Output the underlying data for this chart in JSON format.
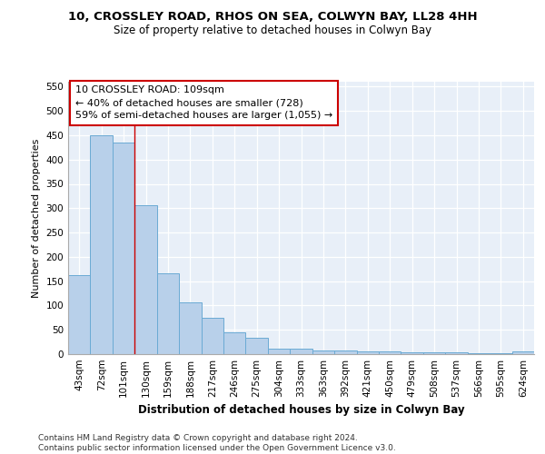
{
  "title1": "10, CROSSLEY ROAD, RHOS ON SEA, COLWYN BAY, LL28 4HH",
  "title2": "Size of property relative to detached houses in Colwyn Bay",
  "xlabel": "Distribution of detached houses by size in Colwyn Bay",
  "ylabel": "Number of detached properties",
  "categories": [
    "43sqm",
    "72sqm",
    "101sqm",
    "130sqm",
    "159sqm",
    "188sqm",
    "217sqm",
    "246sqm",
    "275sqm",
    "304sqm",
    "333sqm",
    "363sqm",
    "392sqm",
    "421sqm",
    "450sqm",
    "479sqm",
    "508sqm",
    "537sqm",
    "566sqm",
    "595sqm",
    "624sqm"
  ],
  "values": [
    163,
    450,
    435,
    307,
    167,
    106,
    74,
    44,
    33,
    11,
    11,
    8,
    8,
    5,
    5,
    3,
    3,
    3,
    1,
    1,
    5
  ],
  "bar_color": "#b8d0ea",
  "bar_edge_color": "#6aaad4",
  "vline_x": 2.5,
  "vline_color": "#cc0000",
  "annotation_text": "10 CROSSLEY ROAD: 109sqm\n← 40% of detached houses are smaller (728)\n59% of semi-detached houses are larger (1,055) →",
  "annotation_box_color": "white",
  "annotation_box_edge_color": "#cc0000",
  "ylim": [
    0,
    560
  ],
  "yticks": [
    0,
    50,
    100,
    150,
    200,
    250,
    300,
    350,
    400,
    450,
    500,
    550
  ],
  "footer": "Contains HM Land Registry data © Crown copyright and database right 2024.\nContains public sector information licensed under the Open Government Licence v3.0.",
  "background_color": "#e8eff8",
  "title1_fontsize": 9.5,
  "title2_fontsize": 8.5,
  "xlabel_fontsize": 8.5,
  "ylabel_fontsize": 8,
  "annotation_fontsize": 8,
  "footer_fontsize": 6.5,
  "tick_fontsize": 7.5
}
